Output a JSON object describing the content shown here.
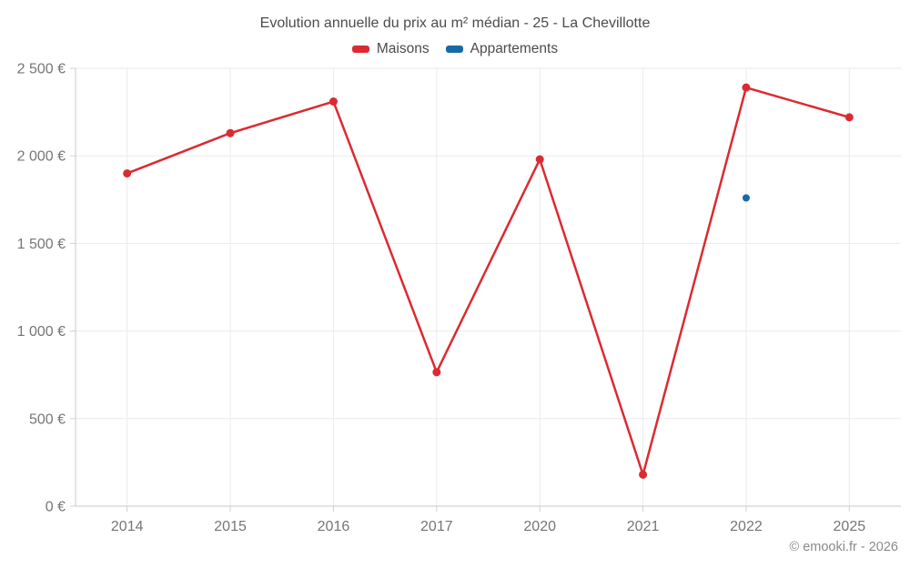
{
  "footer": {
    "text": "© emooki.fr - 2026"
  },
  "chart_data": {
    "type": "line",
    "title": "Evolution annuelle du prix au m² médian - 25 - La Chevillotte",
    "categories": [
      "2014",
      "2015",
      "2016",
      "2017",
      "2020",
      "2021",
      "2022",
      "2025"
    ],
    "series": [
      {
        "name": "Maisons",
        "color": "#dc2a31",
        "draw_line": true,
        "marker_radius": 4.5,
        "values": [
          1900,
          2130,
          2310,
          765,
          1980,
          180,
          2390,
          2220
        ]
      },
      {
        "name": "Appartements",
        "color": "#176ba5",
        "draw_line": false,
        "marker_radius": 4,
        "values": [
          null,
          null,
          null,
          null,
          null,
          null,
          1760,
          null
        ]
      }
    ],
    "ylim": [
      0,
      2500
    ],
    "yticks": [
      {
        "value": 0,
        "label": "0 €"
      },
      {
        "value": 500,
        "label": "500 €"
      },
      {
        "value": 1000,
        "label": "1 000 €"
      },
      {
        "value": 1500,
        "label": "1 500 €"
      },
      {
        "value": 2000,
        "label": "2 000 €"
      },
      {
        "value": 2500,
        "label": "2 500 €"
      }
    ],
    "xlabel": "",
    "ylabel": "",
    "grid": true,
    "legend_position": "top",
    "currency_unit": "€"
  }
}
